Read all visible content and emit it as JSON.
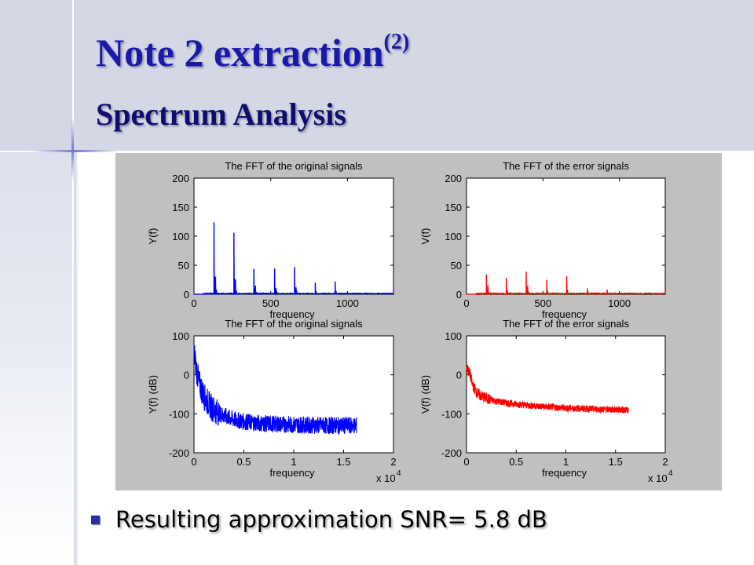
{
  "slide": {
    "title": "Note 2 extraction",
    "title_sup": "(2)",
    "subtitle": "Spectrum Analysis",
    "bullet": "Resulting approximation SNR= 5.8 dB"
  },
  "colors": {
    "title": "#1a1aa8",
    "original": "#0000ff",
    "error": "#ff0000",
    "figure_bg": "#c0c0c0"
  },
  "chart_data": [
    {
      "type": "line",
      "title": "The FFT of the original signals",
      "xlabel": "frequency",
      "ylabel": "Y(f)",
      "xlim": [
        0,
        1300
      ],
      "ylim": [
        0,
        200
      ],
      "xticks": [
        0,
        500,
        1000
      ],
      "yticks": [
        0,
        50,
        100,
        150,
        200
      ],
      "xticklabels": [
        "0",
        "500",
        "1000"
      ],
      "yticklabels": [
        "0",
        "50",
        "100",
        "150",
        "200"
      ],
      "series": [
        {
          "color": "#0000ff",
          "x_end": 1300,
          "peaks": [
            [
              130,
              124
            ],
            [
              140,
              30
            ],
            [
              260,
              106
            ],
            [
              270,
              25
            ],
            [
              390,
              44
            ],
            [
              400,
              15
            ],
            [
              525,
              44
            ],
            [
              535,
              10
            ],
            [
              655,
              47
            ],
            [
              665,
              12
            ],
            [
              790,
              20
            ],
            [
              920,
              22
            ]
          ]
        }
      ]
    },
    {
      "type": "line",
      "title": "The FFT of the error signals",
      "xlabel": "frequency",
      "ylabel": "V(f)",
      "xlim": [
        0,
        1300
      ],
      "ylim": [
        0,
        200
      ],
      "xticks": [
        0,
        500,
        1000
      ],
      "yticks": [
        0,
        50,
        100,
        150,
        200
      ],
      "xticklabels": [
        "0",
        "500",
        "1000"
      ],
      "yticklabels": [
        "0",
        "50",
        "100",
        "150",
        "200"
      ],
      "series": [
        {
          "color": "#ff0000",
          "x_end": 1300,
          "peaks": [
            [
              130,
              34
            ],
            [
              140,
              15
            ],
            [
              260,
              28
            ],
            [
              390,
              39
            ],
            [
              400,
              15
            ],
            [
              525,
              25
            ],
            [
              655,
              31
            ],
            [
              790,
              10
            ],
            [
              920,
              8
            ]
          ]
        }
      ]
    },
    {
      "type": "line",
      "title": "The FFT of the original signals",
      "xlabel": "frequency",
      "ylabel": "Y(f) (dB)",
      "x_multiplier": "x 10",
      "x_multiplier_exp": "4",
      "xlim": [
        0,
        2
      ],
      "ylim": [
        -200,
        100
      ],
      "xticks": [
        0,
        0.5,
        1,
        1.5,
        2
      ],
      "yticks": [
        -200,
        -100,
        0,
        100
      ],
      "xticklabels": [
        "0",
        "0.5",
        "1",
        "1.5",
        "2"
      ],
      "yticklabels": [
        "-200",
        "-100",
        "0",
        "100"
      ],
      "series": [
        {
          "color": "#0000ff",
          "x_end": 1.63,
          "envelope": [
            [
              0,
              60
            ],
            [
              0.02,
              20
            ],
            [
              0.05,
              -20
            ],
            [
              0.1,
              -55
            ],
            [
              0.15,
              -75
            ],
            [
              0.2,
              -90
            ],
            [
              0.3,
              -105
            ],
            [
              0.4,
              -115
            ],
            [
              0.5,
              -120
            ],
            [
              0.7,
              -125
            ],
            [
              1.0,
              -128
            ],
            [
              1.3,
              -130
            ],
            [
              1.63,
              -130
            ]
          ],
          "spread": 22
        }
      ]
    },
    {
      "type": "line",
      "title": "The FFT of the error signals",
      "xlabel": "frequency",
      "ylabel": "V(f) (dB)",
      "x_multiplier": "x 10",
      "x_multiplier_exp": "4",
      "xlim": [
        0,
        2
      ],
      "ylim": [
        -200,
        100
      ],
      "xticks": [
        0,
        0.5,
        1,
        1.5,
        2
      ],
      "yticks": [
        -200,
        -100,
        0,
        100
      ],
      "xticklabels": [
        "0",
        "0.5",
        "1",
        "1.5",
        "2"
      ],
      "yticklabels": [
        "-200",
        "-100",
        "0",
        "100"
      ],
      "series": [
        {
          "color": "#ff0000",
          "x_end": 1.63,
          "envelope": [
            [
              0,
              20
            ],
            [
              0.03,
              5
            ],
            [
              0.06,
              -25
            ],
            [
              0.1,
              -45
            ],
            [
              0.15,
              -55
            ],
            [
              0.25,
              -65
            ],
            [
              0.4,
              -72
            ],
            [
              0.6,
              -78
            ],
            [
              0.8,
              -82
            ],
            [
              1.0,
              -85
            ],
            [
              1.3,
              -88
            ],
            [
              1.63,
              -90
            ]
          ],
          "spread": 9
        }
      ]
    }
  ]
}
